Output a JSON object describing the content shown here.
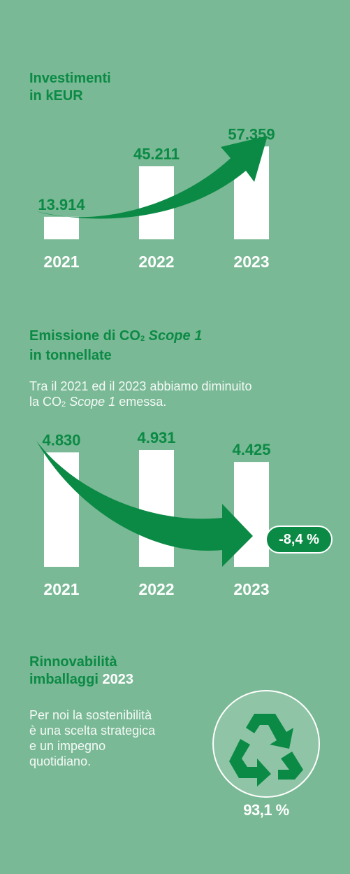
{
  "colors": {
    "background": "#79b995",
    "accent": "#0b8a45",
    "bar": "#ffffff"
  },
  "investments": {
    "title_line1": "Investimenti",
    "title_line2": "in kEUR"
  },
  "emissions": {
    "title_prefix": "Emissione di CO",
    "title_sub": "2",
    "title_italic": "Scope 1",
    "title_line2": "in tonnellate",
    "desc_line1": "Tra il 2021 ed il 2023 abbiamo diminuito",
    "desc_line2_prefix": "la CO",
    "desc_line2_sub": "2",
    "desc_line2_italic": "Scope 1",
    "desc_line2_suffix": "emessa.",
    "change_badge": "-8,4 %"
  },
  "packaging": {
    "title_line1": "Rinnovabilità",
    "title_line2": "imballaggi",
    "title_year": "2023",
    "desc": [
      "Per noi la sostenibilità",
      "è una scelta strategica",
      "e un impegno",
      "quotidiano."
    ],
    "icon": "recycle-icon",
    "percent_label": "93,1 %",
    "percent": 93.1
  },
  "chart_data": [
    {
      "type": "bar",
      "categories": [
        "2021",
        "2022",
        "2023"
      ],
      "values": [
        13914,
        45211,
        57359
      ],
      "value_labels": [
        "13.914",
        "45.211",
        "57.359"
      ],
      "trend": "up",
      "ylim": [
        0,
        70000
      ]
    },
    {
      "type": "bar",
      "categories": [
        "2021",
        "2022",
        "2023"
      ],
      "values": [
        4830,
        4931,
        4425
      ],
      "value_labels": [
        "4.830",
        "4.931",
        "4.425"
      ],
      "trend": "down",
      "ylim": [
        0,
        6200
      ]
    }
  ]
}
